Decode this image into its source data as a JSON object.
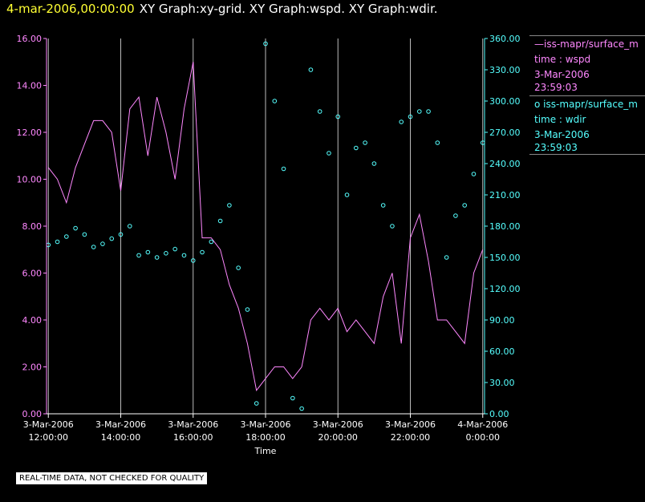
{
  "header": {
    "date": "4-mar-2006,00:00:00",
    "titles": "XY Graph:xy-grid.  XY Graph:wspd.  XY Graph:wdir."
  },
  "legend": {
    "entries": [
      {
        "line1": "—iss-mapr/surface_m",
        "line2": "time : wspd",
        "line3": "3-Mar-2006",
        "line4": "23:59:03",
        "color": "#ff88ff"
      },
      {
        "line1": "o  iss-mapr/surface_m",
        "line2": "time : wdir",
        "line3": "3-Mar-2006",
        "line4": "23:59:03",
        "color": "#55ffff"
      }
    ]
  },
  "notice": "REAL-TIME DATA, NOT CHECKED FOR QUALITY",
  "chart_data": {
    "type": "line",
    "xlabel": "Time",
    "x_ticks": [
      {
        "date": "3-Mar-2006",
        "time": "12:00:00",
        "hours": 12
      },
      {
        "date": "3-Mar-2006",
        "time": "14:00:00",
        "hours": 14
      },
      {
        "date": "3-Mar-2006",
        "time": "16:00:00",
        "hours": 16
      },
      {
        "date": "3-Mar-2006",
        "time": "18:00:00",
        "hours": 18
      },
      {
        "date": "3-Mar-2006",
        "time": "20:00:00",
        "hours": 20
      },
      {
        "date": "3-Mar-2006",
        "time": "22:00:00",
        "hours": 22
      },
      {
        "date": "4-Mar-2006",
        "time": "0:00:00",
        "hours": 24
      }
    ],
    "xlim_hours": [
      11.95,
      24.05
    ],
    "y_left": {
      "ylim": [
        0,
        16
      ],
      "ticks": [
        "0.00",
        "2.00",
        "4.00",
        "6.00",
        "8.00",
        "10.00",
        "12.00",
        "14.00",
        "16.00"
      ],
      "color": "#ff88ff"
    },
    "y_right": {
      "ylim": [
        0,
        360
      ],
      "ticks": [
        "0.00",
        "30.00",
        "60.00",
        "90.00",
        "120.00",
        "150.00",
        "180.00",
        "210.00",
        "240.00",
        "270.00",
        "300.00",
        "330.00",
        "360.00"
      ],
      "color": "#55ffff"
    },
    "grid": "vertical",
    "series": [
      {
        "style": "line",
        "axis": "left",
        "color": "#ff88ff",
        "x": [
          12.0,
          12.25,
          12.5,
          12.75,
          13.0,
          13.25,
          13.5,
          13.75,
          14.0,
          14.25,
          14.5,
          14.75,
          15.0,
          15.25,
          15.5,
          15.75,
          16.0,
          16.25,
          16.5,
          16.75,
          17.0,
          17.25,
          17.5,
          17.75,
          18.0,
          18.25,
          18.5,
          18.75,
          19.0,
          19.25,
          19.5,
          19.75,
          20.0,
          20.25,
          20.5,
          20.75,
          21.0,
          21.25,
          21.5,
          21.75,
          22.0,
          22.25,
          22.5,
          22.75,
          23.0,
          23.25,
          23.5,
          23.75,
          24.0
        ],
        "values": [
          10.5,
          10.0,
          9.0,
          10.5,
          11.5,
          12.5,
          12.5,
          12.0,
          9.5,
          13.0,
          13.5,
          11.0,
          13.5,
          12.0,
          10.0,
          13.0,
          15.0,
          7.5,
          7.5,
          7.0,
          5.5,
          4.5,
          3.0,
          1.0,
          1.5,
          2.0,
          2.0,
          1.5,
          2.0,
          4.0,
          4.5,
          4.0,
          4.5,
          3.5,
          4.0,
          3.5,
          3.0,
          5.0,
          6.0,
          3.0,
          7.5,
          8.5,
          6.5,
          4.0,
          4.0,
          3.5,
          3.0,
          6.0,
          7.0
        ]
      },
      {
        "style": "scatter",
        "axis": "right",
        "color": "#55ffff",
        "x": [
          12.0,
          12.25,
          12.5,
          12.75,
          13.0,
          13.25,
          13.5,
          13.75,
          14.0,
          14.25,
          14.5,
          14.75,
          15.0,
          15.25,
          15.5,
          15.75,
          16.0,
          16.25,
          16.5,
          16.75,
          17.0,
          17.25,
          17.5,
          17.75,
          18.0,
          18.25,
          18.5,
          18.75,
          19.0,
          19.25,
          19.5,
          19.75,
          20.0,
          20.25,
          20.5,
          20.75,
          21.0,
          21.25,
          21.5,
          21.75,
          22.0,
          22.25,
          22.5,
          22.75,
          23.0,
          23.25,
          23.5,
          23.75,
          24.0
        ],
        "values": [
          162,
          165,
          170,
          178,
          172,
          160,
          163,
          168,
          172,
          180,
          152,
          155,
          150,
          154,
          158,
          152,
          147,
          155,
          165,
          185,
          200,
          140,
          100,
          10,
          355,
          300,
          235,
          15,
          5,
          330,
          290,
          250,
          285,
          210,
          255,
          260,
          240,
          200,
          180,
          280,
          285,
          290,
          290,
          260,
          150,
          190,
          200,
          230,
          260
        ]
      }
    ]
  }
}
